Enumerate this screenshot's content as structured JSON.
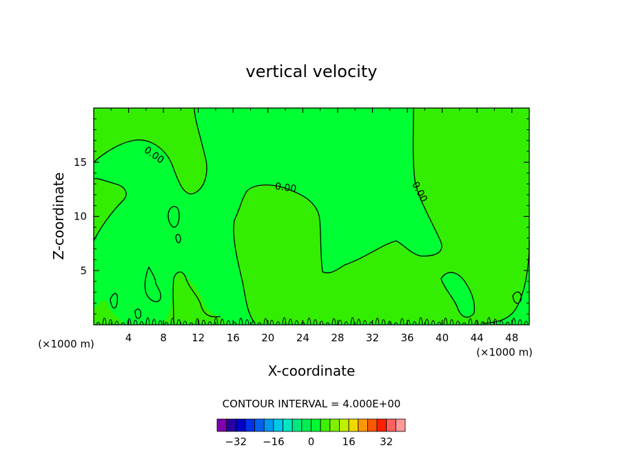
{
  "chart_data": {
    "type": "contour",
    "title": "vertical velocity",
    "xlabel": "X-coordinate",
    "ylabel": "Z-coordinate",
    "x_unit": "(×1000 m)",
    "z_unit": "(×1000 m)",
    "xlim": [
      0,
      50
    ],
    "ylim": [
      0,
      20
    ],
    "x_ticks": [
      "4",
      "8",
      "12",
      "16",
      "20",
      "24",
      "28",
      "32",
      "36",
      "40",
      "44",
      "48"
    ],
    "y_ticks": [
      "5",
      "10",
      "15"
    ],
    "contour_labels": [
      "0.00",
      "0.00",
      "0.00"
    ],
    "contour_interval_text": "CONTOUR INTERVAL = 4.000E+00",
    "colorbar": {
      "levels": [
        -36,
        -32,
        -28,
        -24,
        -20,
        -16,
        -12,
        -8,
        -4,
        0,
        4,
        8,
        12,
        16,
        20,
        24,
        28,
        32,
        36
      ],
      "tick_labels": [
        "-32",
        "-16",
        "0",
        "16",
        "32"
      ],
      "colors": [
        "#8000b0",
        "#2800a0",
        "#0000c8",
        "#0030e8",
        "#0060f0",
        "#0098f0",
        "#00c8e8",
        "#00e8c0",
        "#00e880",
        "#00ee50",
        "#00f830",
        "#40f000",
        "#80f000",
        "#c0f000",
        "#f0d800",
        "#ff9800",
        "#ff5800",
        "#ff2000",
        "#ff6060",
        "#ff9898"
      ]
    },
    "field_colors": {
      "positive": "#00ff33",
      "negative": "#33ee00"
    }
  }
}
